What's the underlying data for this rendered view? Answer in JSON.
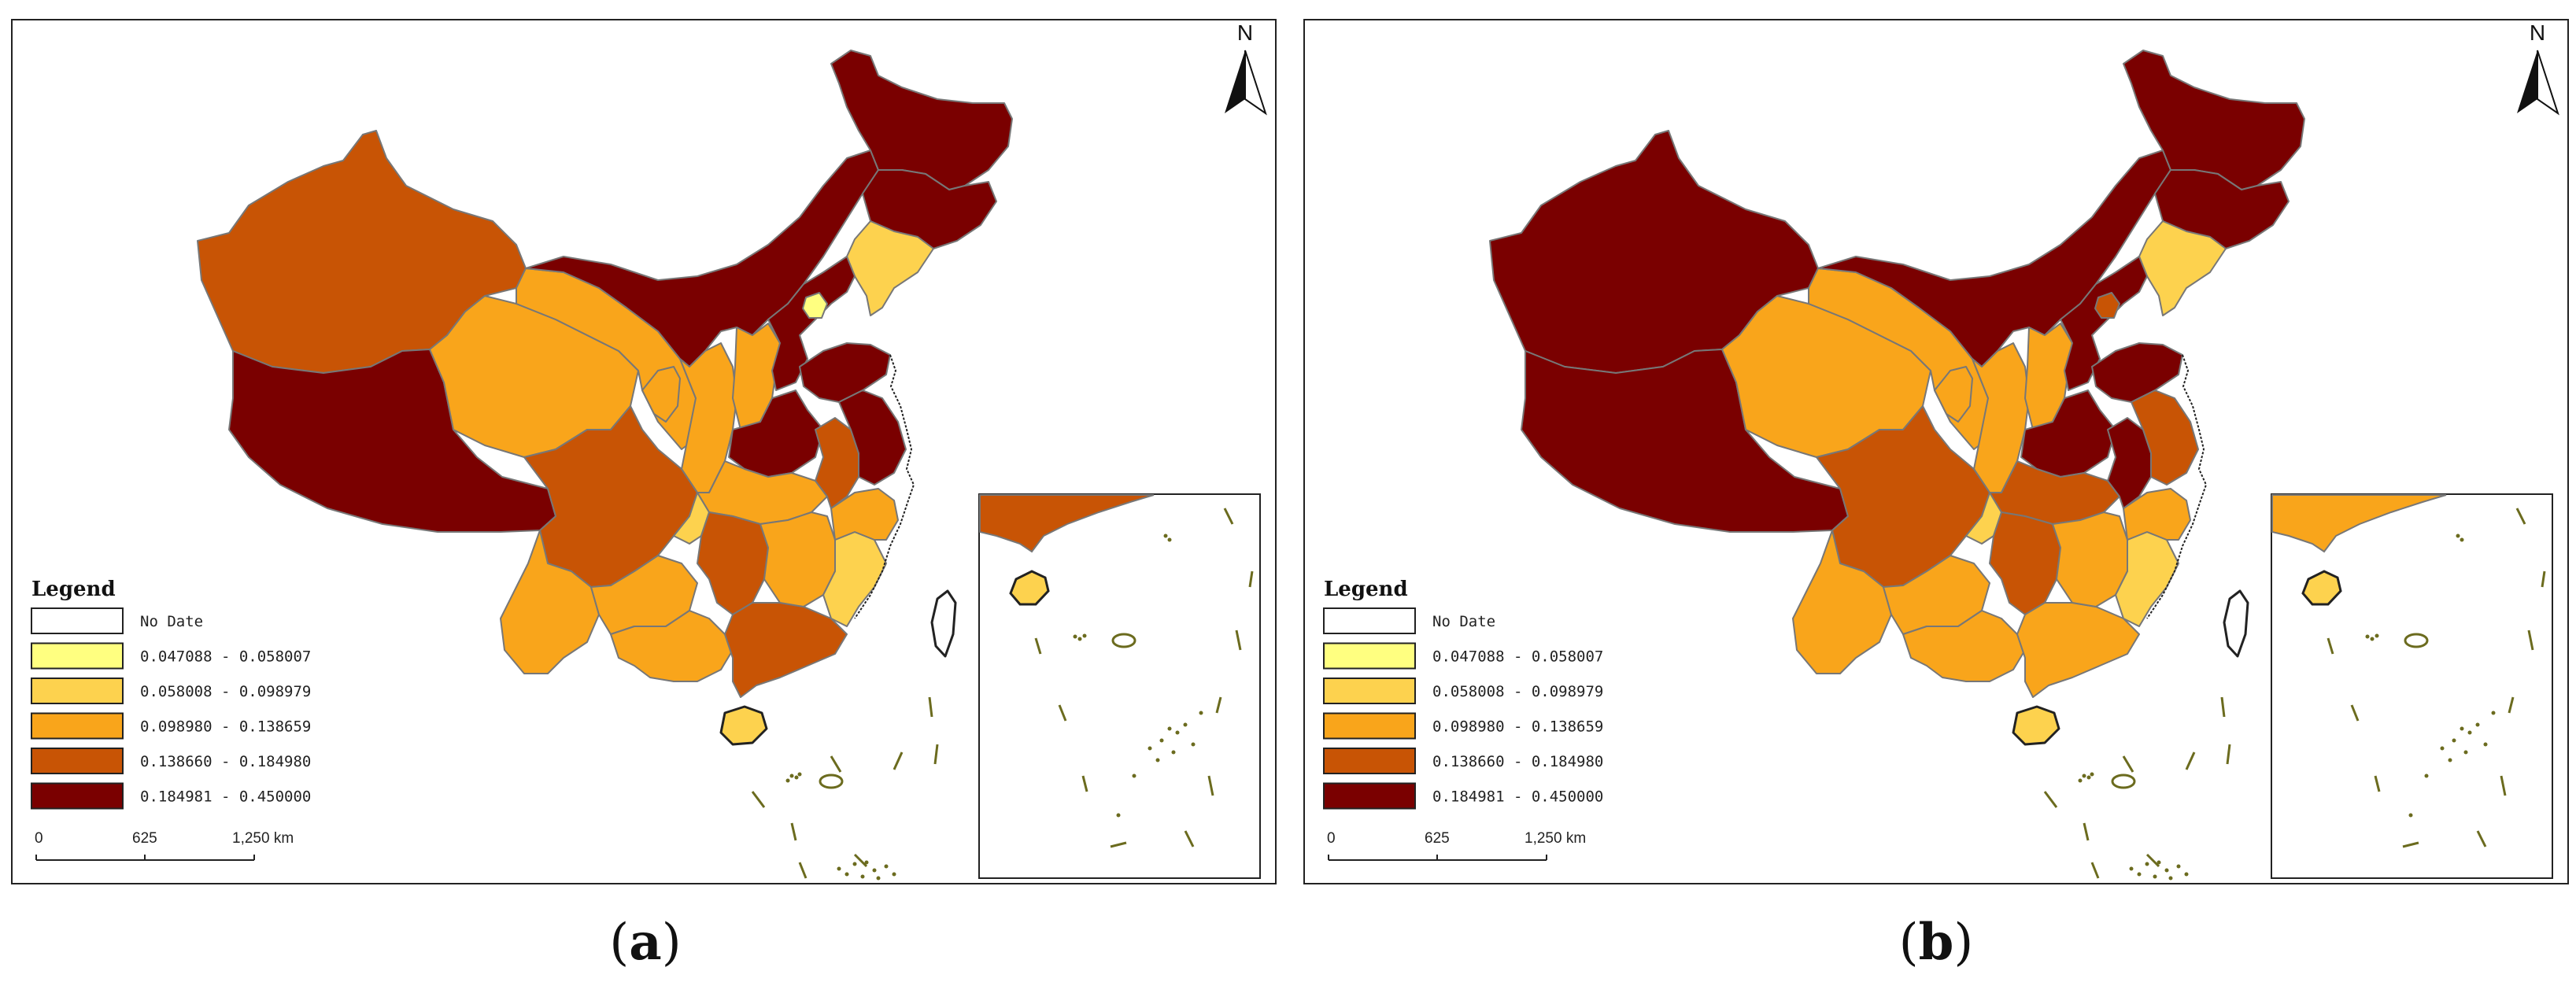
{
  "panels": [
    {
      "id": "a",
      "caption_open": "(",
      "caption_letter": "a",
      "caption_close": ")",
      "fills": {
        "xinjiang": "c2",
        "tibet": "c3",
        "qinghai": "c1",
        "gansu": "c1",
        "inner_mongolia": "c3",
        "heilongjiang": "c3",
        "jilin": "c3",
        "liaoning": "y2",
        "sichuan": "c2",
        "yunnan": "c1",
        "guizhou": "c1",
        "shaanxi": "c1",
        "ningxia": "c1",
        "shanxi": "c1",
        "hebei": "c3",
        "beijing": "y1",
        "shandong": "c3",
        "henan": "c3",
        "hubei": "c1",
        "chongqing": "y2",
        "hunan": "c2",
        "guangxi": "c1",
        "guangdong": "c2",
        "jiangxi": "c1",
        "fujian": "y2",
        "zhejiang": "c1",
        "anhui": "c2",
        "jiangsu": "c3",
        "hainan": "y2",
        "taiwan": "nd"
      },
      "inset_fills": {
        "guangdong": "c2",
        "hainan": "y2"
      }
    },
    {
      "id": "b",
      "caption_open": "(",
      "caption_letter": "b",
      "caption_close": ")",
      "fills": {
        "xinjiang": "c3",
        "tibet": "c3",
        "qinghai": "c1",
        "gansu": "c1",
        "inner_mongolia": "c3",
        "heilongjiang": "c3",
        "jilin": "c3",
        "liaoning": "y2",
        "sichuan": "c2",
        "yunnan": "c1",
        "guizhou": "c1",
        "shaanxi": "c1",
        "ningxia": "c1",
        "shanxi": "c1",
        "hebei": "c3",
        "beijing": "c2",
        "shandong": "c3",
        "henan": "c3",
        "hubei": "c2",
        "chongqing": "y2",
        "hunan": "c2",
        "guangxi": "c1",
        "guangdong": "c1",
        "jiangxi": "c1",
        "fujian": "y2",
        "zhejiang": "c1",
        "anhui": "c3",
        "jiangsu": "c2",
        "hainan": "y2",
        "taiwan": "nd"
      },
      "inset_fills": {
        "guangdong": "c1",
        "hainan": "y2"
      }
    }
  ],
  "legend": {
    "title": "Legend",
    "items": [
      {
        "class": "nd",
        "label": "No Date",
        "color": "#ffffff"
      },
      {
        "class": "y1",
        "label": "0.047088 - 0.058007",
        "color": "#ffff80"
      },
      {
        "class": "y2",
        "label": "0.058008 - 0.098979",
        "color": "#fdd24e"
      },
      {
        "class": "c1",
        "label": "0.098980 - 0.138659",
        "color": "#f9a51b"
      },
      {
        "class": "c2",
        "label": "0.138660 - 0.184980",
        "color": "#c85405"
      },
      {
        "class": "c3",
        "label": "0.184981 - 0.450000",
        "color": "#7a0000"
      }
    ]
  },
  "scale_bar": {
    "ticks": [
      "0",
      "625",
      "1,250 km"
    ]
  },
  "north_arrow": {
    "label": "N",
    "icon": "north-arrow-icon"
  },
  "colors": {
    "border": "#777777",
    "outline": "#222222",
    "island": "#6b6b1e"
  }
}
